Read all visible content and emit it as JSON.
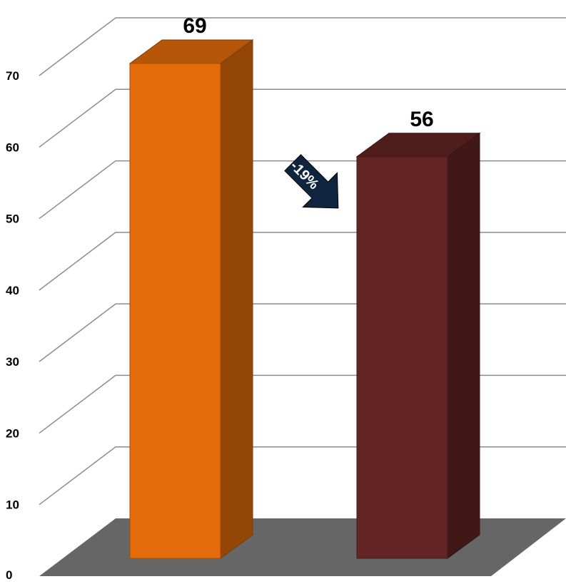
{
  "chart_data": {
    "type": "bar",
    "style": "3d-column",
    "categories": [
      "",
      ""
    ],
    "values": [
      69,
      56
    ],
    "data_labels": [
      "69",
      "56"
    ],
    "bar_colors": [
      "#E46C0A",
      "#632523"
    ],
    "ylim": [
      0,
      70
    ],
    "yticks": [
      "0",
      "10",
      "20",
      "30",
      "40",
      "50",
      "60",
      "70"
    ],
    "grid": true,
    "floor_color": "#666666",
    "title": "",
    "xlabel": "",
    "ylabel": "",
    "annotation": {
      "text": "-19%",
      "shape": "arrow-down-right",
      "color": "#0F243E"
    }
  }
}
